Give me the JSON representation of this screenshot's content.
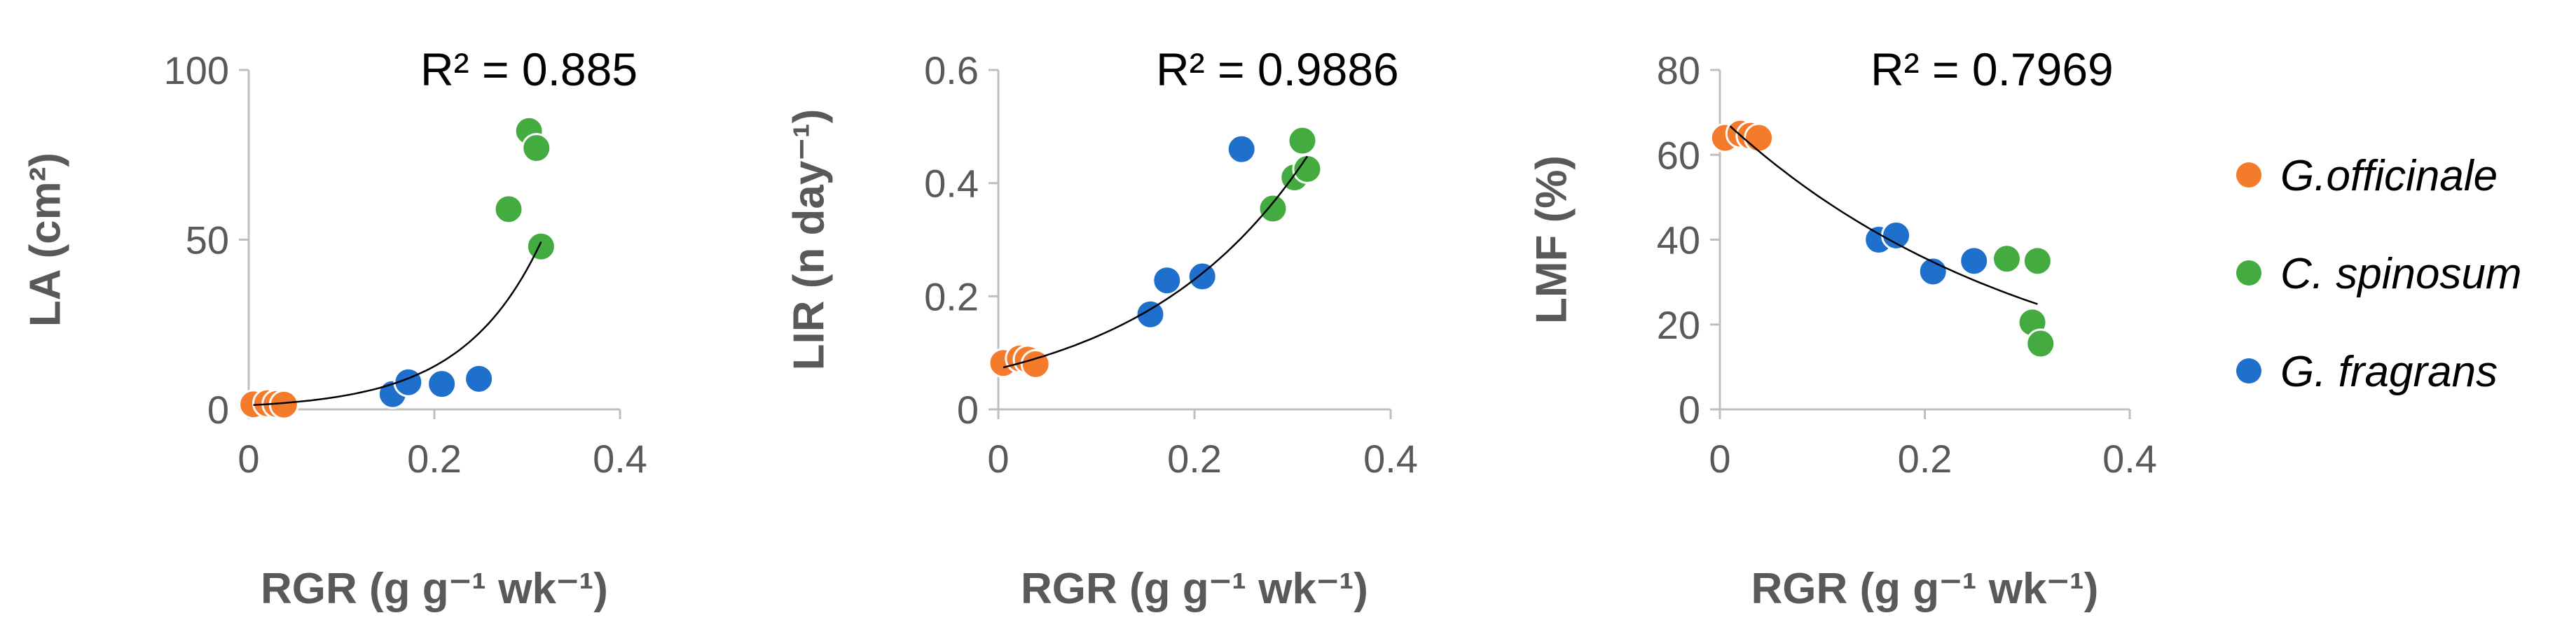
{
  "colors": {
    "G.officinale": "#f47a2c",
    "C. spinosum": "#43ab3f",
    "G. fragrans": "#1f6fcc",
    "axis": "#bfbfbf",
    "trendline": "#000000"
  },
  "legend": {
    "items": [
      {
        "label": "G.officinale",
        "color": "#f47a2c"
      },
      {
        "label": "C. spinosum",
        "color": "#43ab3f"
      },
      {
        "label": "G. fragrans",
        "color": "#1f6fcc"
      }
    ]
  },
  "chart_data": [
    {
      "type": "scatter",
      "ylabel": "LA (cm²)",
      "xlabel": "RGR (g g⁻¹ wk⁻¹)",
      "annotation": "R² = 0.885",
      "xlim": [
        0,
        0.4
      ],
      "ylim": [
        0,
        100
      ],
      "xticks": [
        0,
        0.2,
        0.4
      ],
      "xtick_labels": [
        "0",
        "0.2",
        "0.4"
      ],
      "yticks": [
        0,
        50,
        100
      ],
      "ytick_labels": [
        "0",
        "50",
        "100"
      ],
      "trendline": {
        "type": "exponential",
        "a": 1.2,
        "b": 11.8,
        "x_from": 0.005,
        "x_to": 0.315
      },
      "series": [
        {
          "name": "G.officinale",
          "points": [
            [
              0.005,
              1.5
            ],
            [
              0.02,
              1.8
            ],
            [
              0.03,
              1.6
            ],
            [
              0.038,
              1.4
            ]
          ]
        },
        {
          "name": "C. spinosum",
          "points": [
            [
              0.28,
              59
            ],
            [
              0.302,
              82
            ],
            [
              0.31,
              77
            ],
            [
              0.315,
              48
            ]
          ]
        },
        {
          "name": "G. fragrans",
          "points": [
            [
              0.155,
              4.5
            ],
            [
              0.172,
              8
            ],
            [
              0.208,
              7.5
            ],
            [
              0.248,
              9
            ]
          ]
        }
      ]
    },
    {
      "type": "scatter",
      "ylabel": "LIR (n day⁻¹)",
      "xlabel": "RGR (g g⁻¹ wk⁻¹)",
      "annotation": "R² = 0.9886",
      "xlim": [
        0,
        0.4
      ],
      "ylim": [
        0,
        0.6
      ],
      "xticks": [
        0,
        0.2,
        0.4
      ],
      "xtick_labels": [
        "0",
        "0.2",
        "0.4"
      ],
      "yticks": [
        0,
        0.2,
        0.4,
        0.6
      ],
      "ytick_labels": [
        "0",
        "0.2",
        "0.4",
        "0.6"
      ],
      "trendline": {
        "type": "exponential",
        "a": 0.072,
        "b": 5.8,
        "x_from": 0.005,
        "x_to": 0.315
      },
      "series": [
        {
          "name": "G.officinale",
          "points": [
            [
              0.005,
              0.082
            ],
            [
              0.022,
              0.09
            ],
            [
              0.03,
              0.088
            ],
            [
              0.038,
              0.08
            ]
          ]
        },
        {
          "name": "C. spinosum",
          "points": [
            [
              0.28,
              0.355
            ],
            [
              0.302,
              0.41
            ],
            [
              0.31,
              0.475
            ],
            [
              0.315,
              0.425
            ]
          ]
        },
        {
          "name": "G. fragrans",
          "points": [
            [
              0.155,
              0.168
            ],
            [
              0.172,
              0.228
            ],
            [
              0.208,
              0.235
            ],
            [
              0.248,
              0.46
            ]
          ]
        }
      ]
    },
    {
      "type": "scatter",
      "ylabel": "LMF (%)",
      "xlabel": "RGR (g g⁻¹ wk⁻¹)",
      "annotation": "R² = 0.7969",
      "xlim": [
        0,
        0.4
      ],
      "ylim": [
        0,
        80
      ],
      "xticks": [
        0,
        0.2,
        0.4
      ],
      "xtick_labels": [
        "0",
        "0.2",
        "0.4"
      ],
      "yticks": [
        0,
        20,
        40,
        60,
        80
      ],
      "ytick_labels": [
        "0",
        "20",
        "40",
        "60",
        "80"
      ],
      "trendline": {
        "type": "exponential",
        "a": 69,
        "b": -3.3,
        "x_from": 0.01,
        "x_to": 0.31
      },
      "series": [
        {
          "name": "G.officinale",
          "points": [
            [
              0.005,
              64
            ],
            [
              0.02,
              65
            ],
            [
              0.03,
              64.5
            ],
            [
              0.038,
              64
            ]
          ]
        },
        {
          "name": "C. spinosum",
          "points": [
            [
              0.28,
              35.5
            ],
            [
              0.305,
              20.5
            ],
            [
              0.31,
              35
            ],
            [
              0.313,
              15.5
            ]
          ]
        },
        {
          "name": "G. fragrans",
          "points": [
            [
              0.155,
              40
            ],
            [
              0.172,
              41
            ],
            [
              0.208,
              32.5
            ],
            [
              0.248,
              35
            ]
          ]
        }
      ]
    }
  ]
}
